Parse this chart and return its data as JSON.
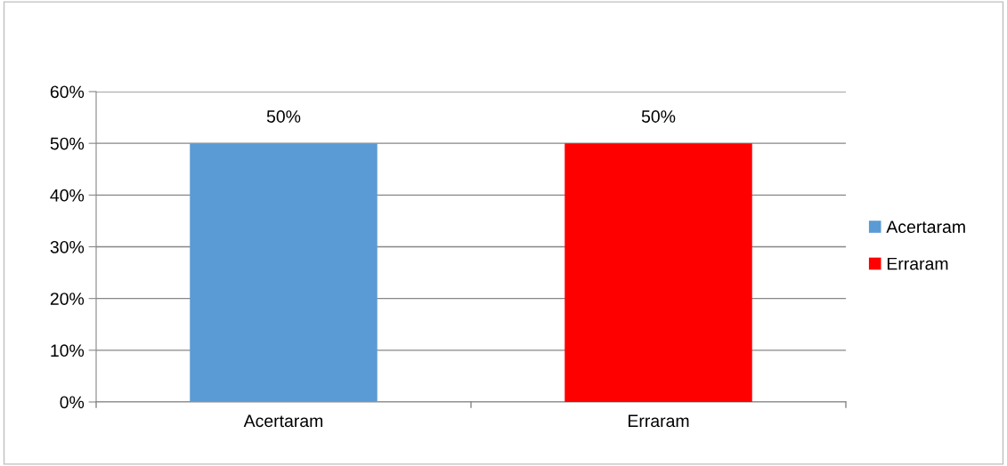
{
  "chart_data": {
    "type": "bar",
    "categories": [
      "Acertaram",
      "Erraram"
    ],
    "series": [
      {
        "name": "Acertaram",
        "color": "#5b9bd5",
        "values": [
          50,
          null
        ],
        "value_labels": [
          "50%",
          null
        ]
      },
      {
        "name": "Erraram",
        "color": "#ff0000",
        "values": [
          null,
          50
        ],
        "value_labels": [
          null,
          "50%"
        ]
      }
    ],
    "stacked": true,
    "ylim": [
      0,
      60
    ],
    "yticks": [
      {
        "value": 0,
        "label": "0%"
      },
      {
        "value": 10,
        "label": "10%"
      },
      {
        "value": 20,
        "label": "20%"
      },
      {
        "value": 30,
        "label": "30%"
      },
      {
        "value": 40,
        "label": "40%"
      },
      {
        "value": 50,
        "label": "50%"
      },
      {
        "value": 60,
        "label": "60%"
      }
    ],
    "grid": "y",
    "legend": "right"
  }
}
